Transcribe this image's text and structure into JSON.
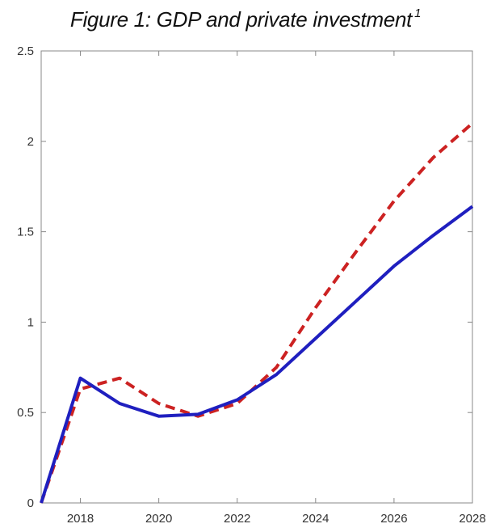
{
  "title": "Figure 1: GDP and private investment",
  "title_footnote": "1",
  "chart_data": {
    "type": "line",
    "title": "Figure 1: GDP and private investment",
    "xlabel": "",
    "ylabel": "",
    "xlim": [
      2017,
      2028
    ],
    "ylim": [
      0,
      2.5
    ],
    "x_ticks": [
      2018,
      2020,
      2022,
      2024,
      2026,
      2028
    ],
    "y_ticks": [
      0,
      0.5,
      1,
      1.5,
      2,
      2.5
    ],
    "y_tick_labels": [
      "0",
      "0.5",
      "1",
      "1.5",
      "2",
      "2.5"
    ],
    "grid": false,
    "legend": "none",
    "series": [
      {
        "color": "#1f1fbf",
        "style": "solid",
        "x": [
          2017,
          2018,
          2019,
          2020,
          2021,
          2022,
          2023,
          2024,
          2025,
          2026,
          2027,
          2028
        ],
        "values": [
          0,
          0.69,
          0.55,
          0.48,
          0.49,
          0.57,
          0.71,
          0.91,
          1.11,
          1.31,
          1.48,
          1.64
        ]
      },
      {
        "color": "#cc2222",
        "style": "dashed",
        "x": [
          2017,
          2018,
          2019,
          2020,
          2021,
          2022,
          2023,
          2024,
          2025,
          2026,
          2027,
          2028
        ],
        "values": [
          0,
          0.63,
          0.69,
          0.55,
          0.48,
          0.55,
          0.75,
          1.08,
          1.38,
          1.67,
          1.91,
          2.1
        ]
      }
    ]
  }
}
